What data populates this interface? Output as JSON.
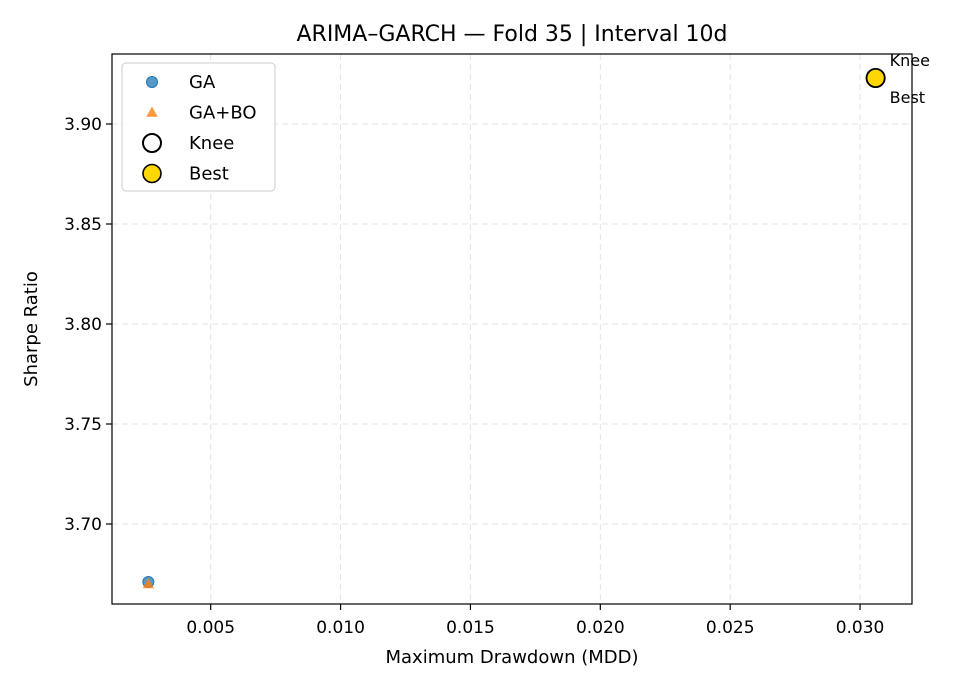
{
  "chart_data": {
    "type": "scatter",
    "title": "ARIMA–GARCH — Fold 35 | Interval 10d",
    "xlabel": "Maximum Drawdown (MDD)",
    "ylabel": "Sharpe Ratio",
    "xlim": [
      0.0012,
      0.032
    ],
    "ylim": [
      3.66,
      3.935
    ],
    "xticks": [
      0.005,
      0.01,
      0.015,
      0.02,
      0.025,
      0.03
    ],
    "xtick_labels": [
      "0.005",
      "0.010",
      "0.015",
      "0.020",
      "0.025",
      "0.030"
    ],
    "yticks": [
      3.7,
      3.75,
      3.8,
      3.85,
      3.9
    ],
    "ytick_labels": [
      "3.70",
      "3.75",
      "3.80",
      "3.85",
      "3.90"
    ],
    "grid": true,
    "legend_position": "top-left",
    "series": [
      {
        "name": "GA",
        "marker": "circle",
        "color": "#1f77b4",
        "points": [
          {
            "x": 0.0026,
            "y": 3.671
          },
          {
            "x": 0.0306,
            "y": 3.923
          }
        ]
      },
      {
        "name": "GA+BO",
        "marker": "triangle",
        "color": "#ff7f0e",
        "points": [
          {
            "x": 0.0026,
            "y": 3.67
          }
        ]
      },
      {
        "name": "Knee",
        "marker": "open-circle",
        "color": "#000000",
        "points": [
          {
            "x": 0.0306,
            "y": 3.923
          }
        ]
      },
      {
        "name": "Best",
        "marker": "gold-circle",
        "color": "#ffd700",
        "points": [
          {
            "x": 0.0306,
            "y": 3.923
          }
        ]
      }
    ],
    "annotations": [
      {
        "text": "Knee",
        "x": 0.0306,
        "y": 3.923,
        "position": "above-right"
      },
      {
        "text": "Best",
        "x": 0.0306,
        "y": 3.923,
        "position": "below-right"
      }
    ]
  }
}
